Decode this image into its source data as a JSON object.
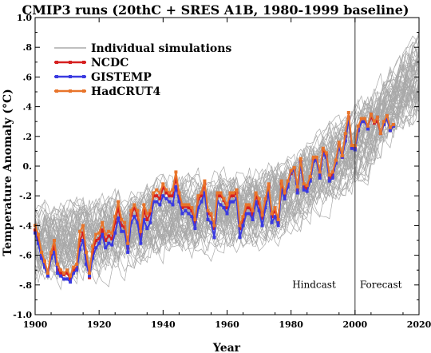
{
  "chart_data": {
    "type": "line",
    "title": "CMIP3 runs (20thC + SRES A1B, 1980-1999 baseline)",
    "xlabel": "Year",
    "ylabel": "Temperature Anomaly (°C)",
    "xlim": [
      1900,
      2020
    ],
    "ylim": [
      -1.0,
      1.0
    ],
    "x_ticks": [
      1900,
      1920,
      1940,
      1960,
      1980,
      2000,
      2020
    ],
    "x_tick_labels": [
      "1900",
      "1920",
      "1940",
      "1960",
      "1980",
      "2000",
      "2020"
    ],
    "y_ticks": [
      -1.0,
      -0.8,
      -0.6,
      -0.4,
      -0.2,
      0.0,
      0.2,
      0.4,
      0.6,
      0.8,
      1.0
    ],
    "y_tick_labels": [
      "-1.0",
      "-.8",
      "-.6",
      "-.4",
      "-.2",
      "0.",
      ".2",
      ".4",
      ".6",
      ".8",
      "1.0"
    ],
    "grid": false,
    "legend_position": "top-left",
    "legend": [
      {
        "name": "Individual simulations",
        "color": "#aaaaaa",
        "marker": "none"
      },
      {
        "name": "NCDC",
        "color": "#d62020",
        "marker": "square"
      },
      {
        "name": "GISTEMP",
        "color": "#3a3ae0",
        "marker": "square"
      },
      {
        "name": "HadCRUT4",
        "color": "#e8742a",
        "marker": "square"
      }
    ],
    "annotations": [
      {
        "text": "Hindcast",
        "x": 1994,
        "y": -0.82
      },
      {
        "text": "Forecast",
        "x": 2001.5,
        "y": -0.82
      }
    ],
    "divider_year": 2000,
    "ensemble_mean": {
      "x": [
        1900,
        1910,
        1920,
        1930,
        1940,
        1950,
        1960,
        1970,
        1980,
        1990,
        2000,
        2010,
        2020
      ],
      "y": [
        -0.52,
        -0.5,
        -0.47,
        -0.42,
        -0.35,
        -0.32,
        -0.3,
        -0.28,
        -0.17,
        -0.02,
        0.12,
        0.38,
        0.62
      ]
    },
    "ensemble_count": 55,
    "series": [
      {
        "name": "NCDC",
        "color": "#d62020",
        "x": [
          1900,
          1901,
          1902,
          1903,
          1904,
          1905,
          1906,
          1907,
          1908,
          1909,
          1910,
          1911,
          1912,
          1913,
          1914,
          1915,
          1916,
          1917,
          1918,
          1919,
          1920,
          1921,
          1922,
          1923,
          1924,
          1925,
          1926,
          1927,
          1928,
          1929,
          1930,
          1931,
          1932,
          1933,
          1934,
          1935,
          1936,
          1937,
          1938,
          1939,
          1940,
          1941,
          1942,
          1943,
          1944,
          1945,
          1946,
          1947,
          1948,
          1949,
          1950,
          1951,
          1952,
          1953,
          1954,
          1955,
          1956,
          1957,
          1958,
          1959,
          1960,
          1961,
          1962,
          1963,
          1964,
          1965,
          1966,
          1967,
          1968,
          1969,
          1970,
          1971,
          1972,
          1973,
          1974,
          1975,
          1976,
          1977,
          1978,
          1979,
          1980,
          1981,
          1982,
          1983,
          1984,
          1985,
          1986,
          1987,
          1988,
          1989,
          1990,
          1991,
          1992,
          1993,
          1994,
          1995,
          1996,
          1997,
          1998,
          1999,
          2000,
          2001,
          2002,
          2003,
          2004,
          2005,
          2006,
          2007,
          2008,
          2009,
          2010,
          2011,
          2012
        ],
        "y": [
          -0.43,
          -0.5,
          -0.6,
          -0.67,
          -0.73,
          -0.6,
          -0.54,
          -0.7,
          -0.72,
          -0.73,
          -0.72,
          -0.76,
          -0.7,
          -0.69,
          -0.5,
          -0.45,
          -0.62,
          -0.75,
          -0.58,
          -0.5,
          -0.49,
          -0.43,
          -0.5,
          -0.47,
          -0.49,
          -0.38,
          -0.28,
          -0.4,
          -0.41,
          -0.55,
          -0.33,
          -0.28,
          -0.33,
          -0.47,
          -0.3,
          -0.36,
          -0.32,
          -0.2,
          -0.2,
          -0.22,
          -0.14,
          -0.18,
          -0.2,
          -0.2,
          -0.08,
          -0.2,
          -0.28,
          -0.27,
          -0.28,
          -0.3,
          -0.38,
          -0.22,
          -0.2,
          -0.12,
          -0.32,
          -0.33,
          -0.42,
          -0.2,
          -0.2,
          -0.23,
          -0.28,
          -0.2,
          -0.2,
          -0.18,
          -0.42,
          -0.36,
          -0.28,
          -0.28,
          -0.33,
          -0.2,
          -0.25,
          -0.35,
          -0.24,
          -0.14,
          -0.34,
          -0.3,
          -0.38,
          -0.12,
          -0.2,
          -0.12,
          -0.05,
          -0.02,
          -0.16,
          0.03,
          -0.14,
          -0.15,
          -0.08,
          0.04,
          0.04,
          -0.06,
          0.1,
          0.07,
          -0.08,
          -0.06,
          0.03,
          0.14,
          0.06,
          0.2,
          0.33,
          0.12,
          0.12,
          0.24,
          0.3,
          0.3,
          0.26,
          0.33,
          0.29,
          0.3,
          0.22,
          0.28,
          0.32,
          0.24,
          0.27
        ]
      },
      {
        "name": "GISTEMP",
        "color": "#3a3ae0",
        "x": [
          1900,
          1901,
          1902,
          1903,
          1904,
          1905,
          1906,
          1907,
          1908,
          1909,
          1910,
          1911,
          1912,
          1913,
          1914,
          1915,
          1916,
          1917,
          1918,
          1919,
          1920,
          1921,
          1922,
          1923,
          1924,
          1925,
          1926,
          1927,
          1928,
          1929,
          1930,
          1931,
          1932,
          1933,
          1934,
          1935,
          1936,
          1937,
          1938,
          1939,
          1940,
          1941,
          1942,
          1943,
          1944,
          1945,
          1946,
          1947,
          1948,
          1949,
          1950,
          1951,
          1952,
          1953,
          1954,
          1955,
          1956,
          1957,
          1958,
          1959,
          1960,
          1961,
          1962,
          1963,
          1964,
          1965,
          1966,
          1967,
          1968,
          1969,
          1970,
          1971,
          1972,
          1973,
          1974,
          1975,
          1976,
          1977,
          1978,
          1979,
          1980,
          1981,
          1982,
          1983,
          1984,
          1985,
          1986,
          1987,
          1988,
          1989,
          1990,
          1991,
          1992,
          1993,
          1994,
          1995,
          1996,
          1997,
          1998,
          1999,
          2000,
          2001,
          2002,
          2003,
          2004,
          2005,
          2006,
          2007,
          2008,
          2009,
          2010,
          2011,
          2012
        ],
        "y": [
          -0.45,
          -0.52,
          -0.62,
          -0.68,
          -0.74,
          -0.62,
          -0.58,
          -0.72,
          -0.74,
          -0.76,
          -0.76,
          -0.78,
          -0.72,
          -0.7,
          -0.56,
          -0.5,
          -0.66,
          -0.74,
          -0.62,
          -0.55,
          -0.52,
          -0.46,
          -0.55,
          -0.52,
          -0.53,
          -0.45,
          -0.35,
          -0.44,
          -0.44,
          -0.58,
          -0.38,
          -0.34,
          -0.38,
          -0.52,
          -0.36,
          -0.42,
          -0.38,
          -0.24,
          -0.24,
          -0.26,
          -0.2,
          -0.22,
          -0.24,
          -0.26,
          -0.14,
          -0.24,
          -0.32,
          -0.3,
          -0.32,
          -0.34,
          -0.42,
          -0.28,
          -0.24,
          -0.18,
          -0.36,
          -0.38,
          -0.48,
          -0.24,
          -0.26,
          -0.28,
          -0.32,
          -0.24,
          -0.24,
          -0.22,
          -0.48,
          -0.4,
          -0.32,
          -0.32,
          -0.36,
          -0.24,
          -0.3,
          -0.4,
          -0.28,
          -0.18,
          -0.38,
          -0.34,
          -0.4,
          -0.16,
          -0.22,
          -0.14,
          -0.04,
          -0.03,
          -0.18,
          0.02,
          -0.16,
          -0.17,
          -0.1,
          0.03,
          0.04,
          -0.08,
          0.08,
          0.06,
          -0.1,
          -0.08,
          0.02,
          0.13,
          0.06,
          0.17,
          0.32,
          0.12,
          0.11,
          0.24,
          0.3,
          0.3,
          0.25,
          0.35,
          0.3,
          0.33,
          0.22,
          0.28,
          0.32,
          0.24,
          0.27
        ]
      },
      {
        "name": "HadCRUT4",
        "color": "#e8742a",
        "x": [
          1900,
          1901,
          1902,
          1903,
          1904,
          1905,
          1906,
          1907,
          1908,
          1909,
          1910,
          1911,
          1912,
          1913,
          1914,
          1915,
          1916,
          1917,
          1918,
          1919,
          1920,
          1921,
          1922,
          1923,
          1924,
          1925,
          1926,
          1927,
          1928,
          1929,
          1930,
          1931,
          1932,
          1933,
          1934,
          1935,
          1936,
          1937,
          1938,
          1939,
          1940,
          1941,
          1942,
          1943,
          1944,
          1945,
          1946,
          1947,
          1948,
          1949,
          1950,
          1951,
          1952,
          1953,
          1954,
          1955,
          1956,
          1957,
          1958,
          1959,
          1960,
          1961,
          1962,
          1963,
          1964,
          1965,
          1966,
          1967,
          1968,
          1969,
          1970,
          1971,
          1972,
          1973,
          1974,
          1975,
          1976,
          1977,
          1978,
          1979,
          1980,
          1981,
          1982,
          1983,
          1984,
          1985,
          1986,
          1987,
          1988,
          1989,
          1990,
          1991,
          1992,
          1993,
          1994,
          1995,
          1996,
          1997,
          1998,
          1999,
          2000,
          2001,
          2002,
          2003,
          2004,
          2005,
          2006,
          2007,
          2008,
          2009,
          2010,
          2011,
          2012
        ],
        "y": [
          -0.4,
          -0.46,
          -0.58,
          -0.64,
          -0.72,
          -0.58,
          -0.5,
          -0.66,
          -0.7,
          -0.72,
          -0.7,
          -0.74,
          -0.68,
          -0.66,
          -0.44,
          -0.4,
          -0.58,
          -0.72,
          -0.54,
          -0.46,
          -0.45,
          -0.38,
          -0.46,
          -0.44,
          -0.45,
          -0.34,
          -0.24,
          -0.36,
          -0.38,
          -0.52,
          -0.3,
          -0.26,
          -0.3,
          -0.44,
          -0.26,
          -0.32,
          -0.3,
          -0.18,
          -0.16,
          -0.18,
          -0.12,
          -0.16,
          -0.18,
          -0.16,
          -0.04,
          -0.18,
          -0.26,
          -0.26,
          -0.26,
          -0.28,
          -0.36,
          -0.2,
          -0.18,
          -0.1,
          -0.3,
          -0.32,
          -0.4,
          -0.18,
          -0.18,
          -0.22,
          -0.26,
          -0.18,
          -0.18,
          -0.16,
          -0.4,
          -0.34,
          -0.26,
          -0.26,
          -0.3,
          -0.18,
          -0.22,
          -0.33,
          -0.22,
          -0.12,
          -0.32,
          -0.28,
          -0.36,
          -0.1,
          -0.18,
          -0.1,
          -0.03,
          -0.01,
          -0.14,
          0.05,
          -0.12,
          -0.13,
          -0.07,
          0.06,
          0.06,
          -0.04,
          0.12,
          0.09,
          -0.06,
          -0.04,
          0.04,
          0.16,
          0.07,
          0.22,
          0.36,
          0.14,
          0.14,
          0.27,
          0.32,
          0.32,
          0.27,
          0.35,
          0.3,
          0.33,
          0.22,
          0.3,
          0.34,
          0.26,
          0.28
        ]
      }
    ]
  }
}
